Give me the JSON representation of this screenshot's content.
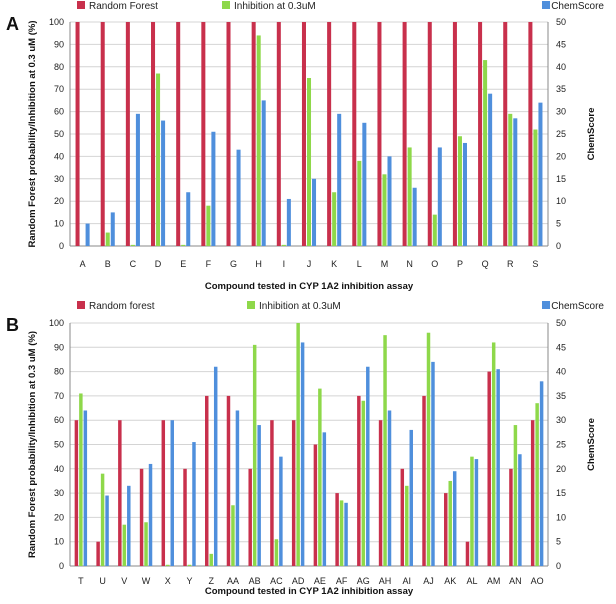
{
  "colors": {
    "random_forest": "#c8304c",
    "inhibition": "#8ed84a",
    "chemscore": "#4f8fdc",
    "grid": "#d4d4d4",
    "axis": "#888888"
  },
  "chart_data": [
    {
      "panel_label": "A",
      "type": "bar",
      "title": "",
      "xlabel": "Compound tested in CYP 1A2 inhibition assay",
      "ylabel": "Random Forest probability/Inhibition at 0.3 uM (%)",
      "y2label": "ChemScore",
      "ylim": [
        0,
        100
      ],
      "y2lim": [
        0,
        50
      ],
      "yticks": [
        0,
        10,
        20,
        30,
        40,
        50,
        60,
        70,
        80,
        90,
        100
      ],
      "y2ticks": [
        0,
        5,
        10,
        15,
        20,
        25,
        30,
        35,
        40,
        45,
        50
      ],
      "categories": [
        "A",
        "B",
        "C",
        "D",
        "E",
        "F",
        "G",
        "H",
        "I",
        "J",
        "K",
        "L",
        "M",
        "N",
        "O",
        "P",
        "Q",
        "R",
        "S"
      ],
      "legend": [
        "Random Forest",
        "Inhibition at 0.3uM",
        "ChemScore"
      ],
      "series": [
        {
          "name": "Random Forest",
          "axis": "left",
          "values": [
            100,
            100,
            100,
            100,
            100,
            100,
            100,
            100,
            100,
            100,
            100,
            100,
            100,
            100,
            100,
            100,
            100,
            100,
            100
          ]
        },
        {
          "name": "Inhibition at 0.3uM",
          "axis": "left",
          "values": [
            0,
            6,
            0.5,
            77,
            0.5,
            18,
            0,
            94,
            0.5,
            75,
            24,
            38,
            32,
            44,
            14,
            49,
            83,
            59,
            52
          ]
        },
        {
          "name": "ChemScore",
          "axis": "right",
          "values": [
            5,
            7.5,
            29.5,
            28,
            12,
            25.5,
            21.5,
            32.5,
            10.5,
            15,
            29.5,
            27.5,
            20,
            13,
            22,
            23,
            34,
            28.5,
            32
          ]
        }
      ]
    },
    {
      "panel_label": "B",
      "type": "bar",
      "title": "",
      "xlabel": "Compound tested in CYP 1A2 inhibition assay",
      "ylabel": "Random Forest probability/Inhibition at 0.3 uM (%)",
      "y2label": "ChemScore",
      "ylim": [
        0,
        100
      ],
      "y2lim": [
        0,
        50
      ],
      "yticks": [
        0,
        10,
        20,
        30,
        40,
        50,
        60,
        70,
        80,
        90,
        100
      ],
      "y2ticks": [
        0,
        5,
        10,
        15,
        20,
        25,
        30,
        35,
        40,
        45,
        50
      ],
      "categories": [
        "T",
        "U",
        "V",
        "W",
        "X",
        "Y",
        "Z",
        "AA",
        "AB",
        "AC",
        "AD",
        "AE",
        "AF",
        "AG",
        "AH",
        "AI",
        "AJ",
        "AK",
        "AL",
        "AM",
        "AN",
        "AO"
      ],
      "legend": [
        "Random forest",
        "Inhibition at 0.3uM",
        "ChemScore"
      ],
      "series": [
        {
          "name": "Random forest",
          "axis": "left",
          "values": [
            60,
            10,
            60,
            40,
            60,
            40,
            70,
            70,
            40,
            60,
            60,
            50,
            30,
            70,
            60,
            40,
            70,
            30,
            10,
            80,
            40,
            60
          ]
        },
        {
          "name": "Inhibition at 0.3uM",
          "axis": "left",
          "values": [
            71,
            38,
            17,
            18,
            0.5,
            0.5,
            5,
            25,
            91,
            11,
            100,
            73,
            27,
            68,
            95,
            33,
            96,
            35,
            45,
            92,
            58,
            67
          ]
        },
        {
          "name": "ChemScore",
          "axis": "right",
          "values": [
            32,
            14.5,
            16.5,
            21,
            30,
            25.5,
            41,
            32,
            29,
            22.5,
            46,
            27.5,
            13,
            41,
            32,
            28,
            42,
            19.5,
            22,
            40.5,
            23,
            38
          ]
        }
      ]
    }
  ]
}
